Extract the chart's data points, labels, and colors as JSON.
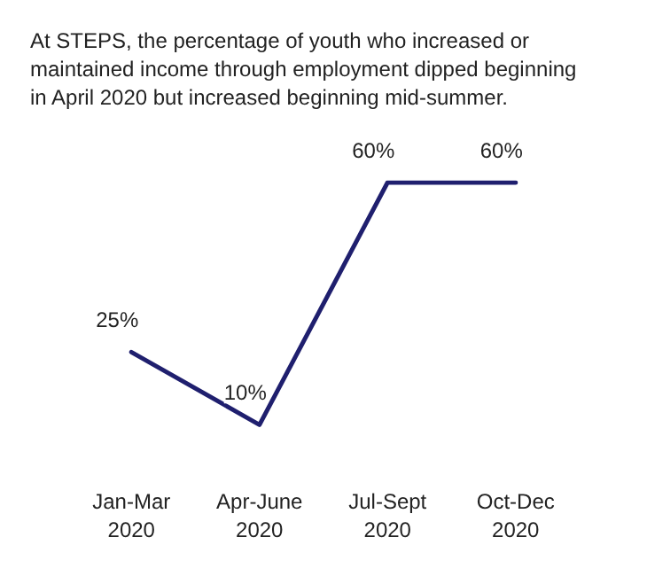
{
  "chart_data": {
    "type": "line",
    "title": "At STEPS, the percentage of youth who increased or maintained income through employment dipped beginning in April 2020 but increased beginning mid-summer.",
    "categories": [
      "Jan-Mar 2020",
      "Apr-June 2020",
      "Jul-Sept 2020",
      "Oct-Dec 2020"
    ],
    "series": [
      {
        "color": "#1f1f6e",
        "values": [
          25,
          10,
          60,
          60
        ],
        "value_labels": [
          "25%",
          "10%",
          "60%",
          "60%"
        ]
      }
    ],
    "marker": "none",
    "line_style": "solid",
    "grid": false,
    "tick_labels": "x"
  }
}
